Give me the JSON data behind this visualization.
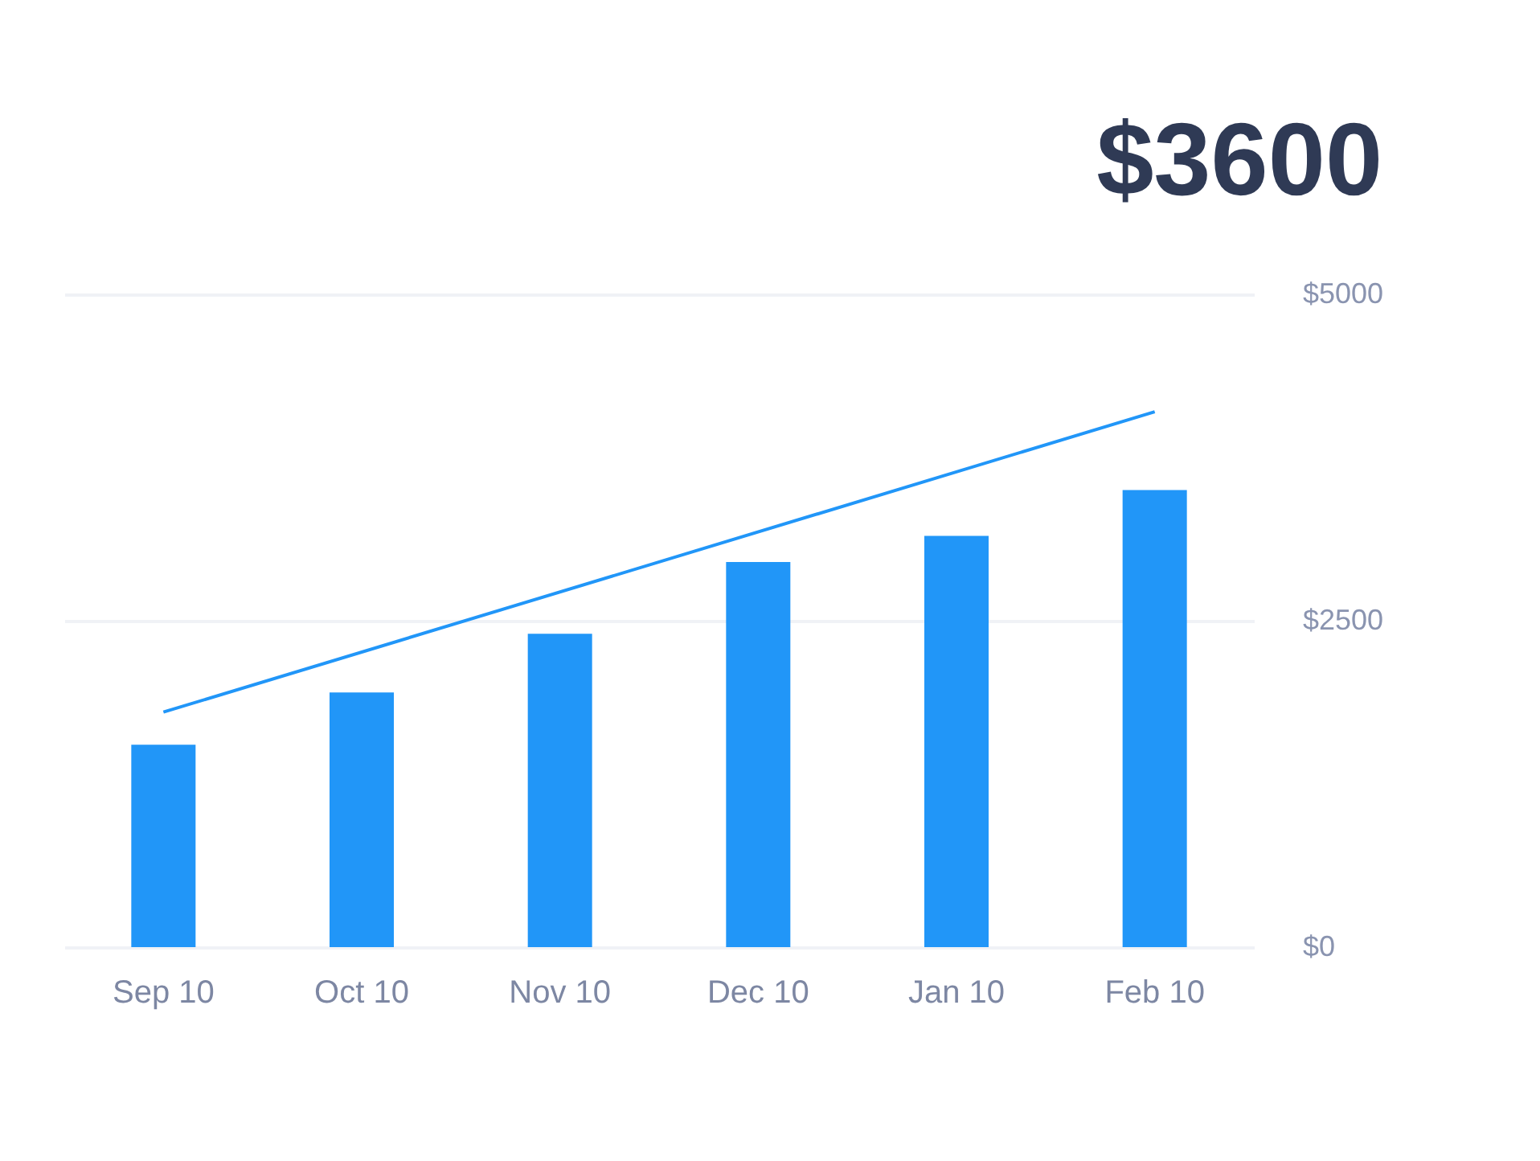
{
  "chart_data": {
    "type": "bar",
    "title": "$3600",
    "categories": [
      "Sep 10",
      "Oct 10",
      "Nov 10",
      "Dec 10",
      "Jan 10",
      "Feb 10"
    ],
    "series": [
      {
        "color": "#2196f8",
        "values": [
          1550,
          1950,
          2400,
          2950,
          3150,
          3500
        ]
      },
      {
        "type": "line",
        "color": "#2196f8",
        "x": [
          "Sep 10",
          "Feb 10"
        ],
        "values": [
          1800,
          4100
        ]
      }
    ],
    "ylim": [
      0,
      5000
    ],
    "yticks": [
      {
        "value": 0,
        "label": "$0"
      },
      {
        "value": 2500,
        "label": "$2500"
      },
      {
        "value": 5000,
        "label": "$5000"
      }
    ],
    "grid": "y",
    "marker": "none",
    "line_style": "solid"
  }
}
